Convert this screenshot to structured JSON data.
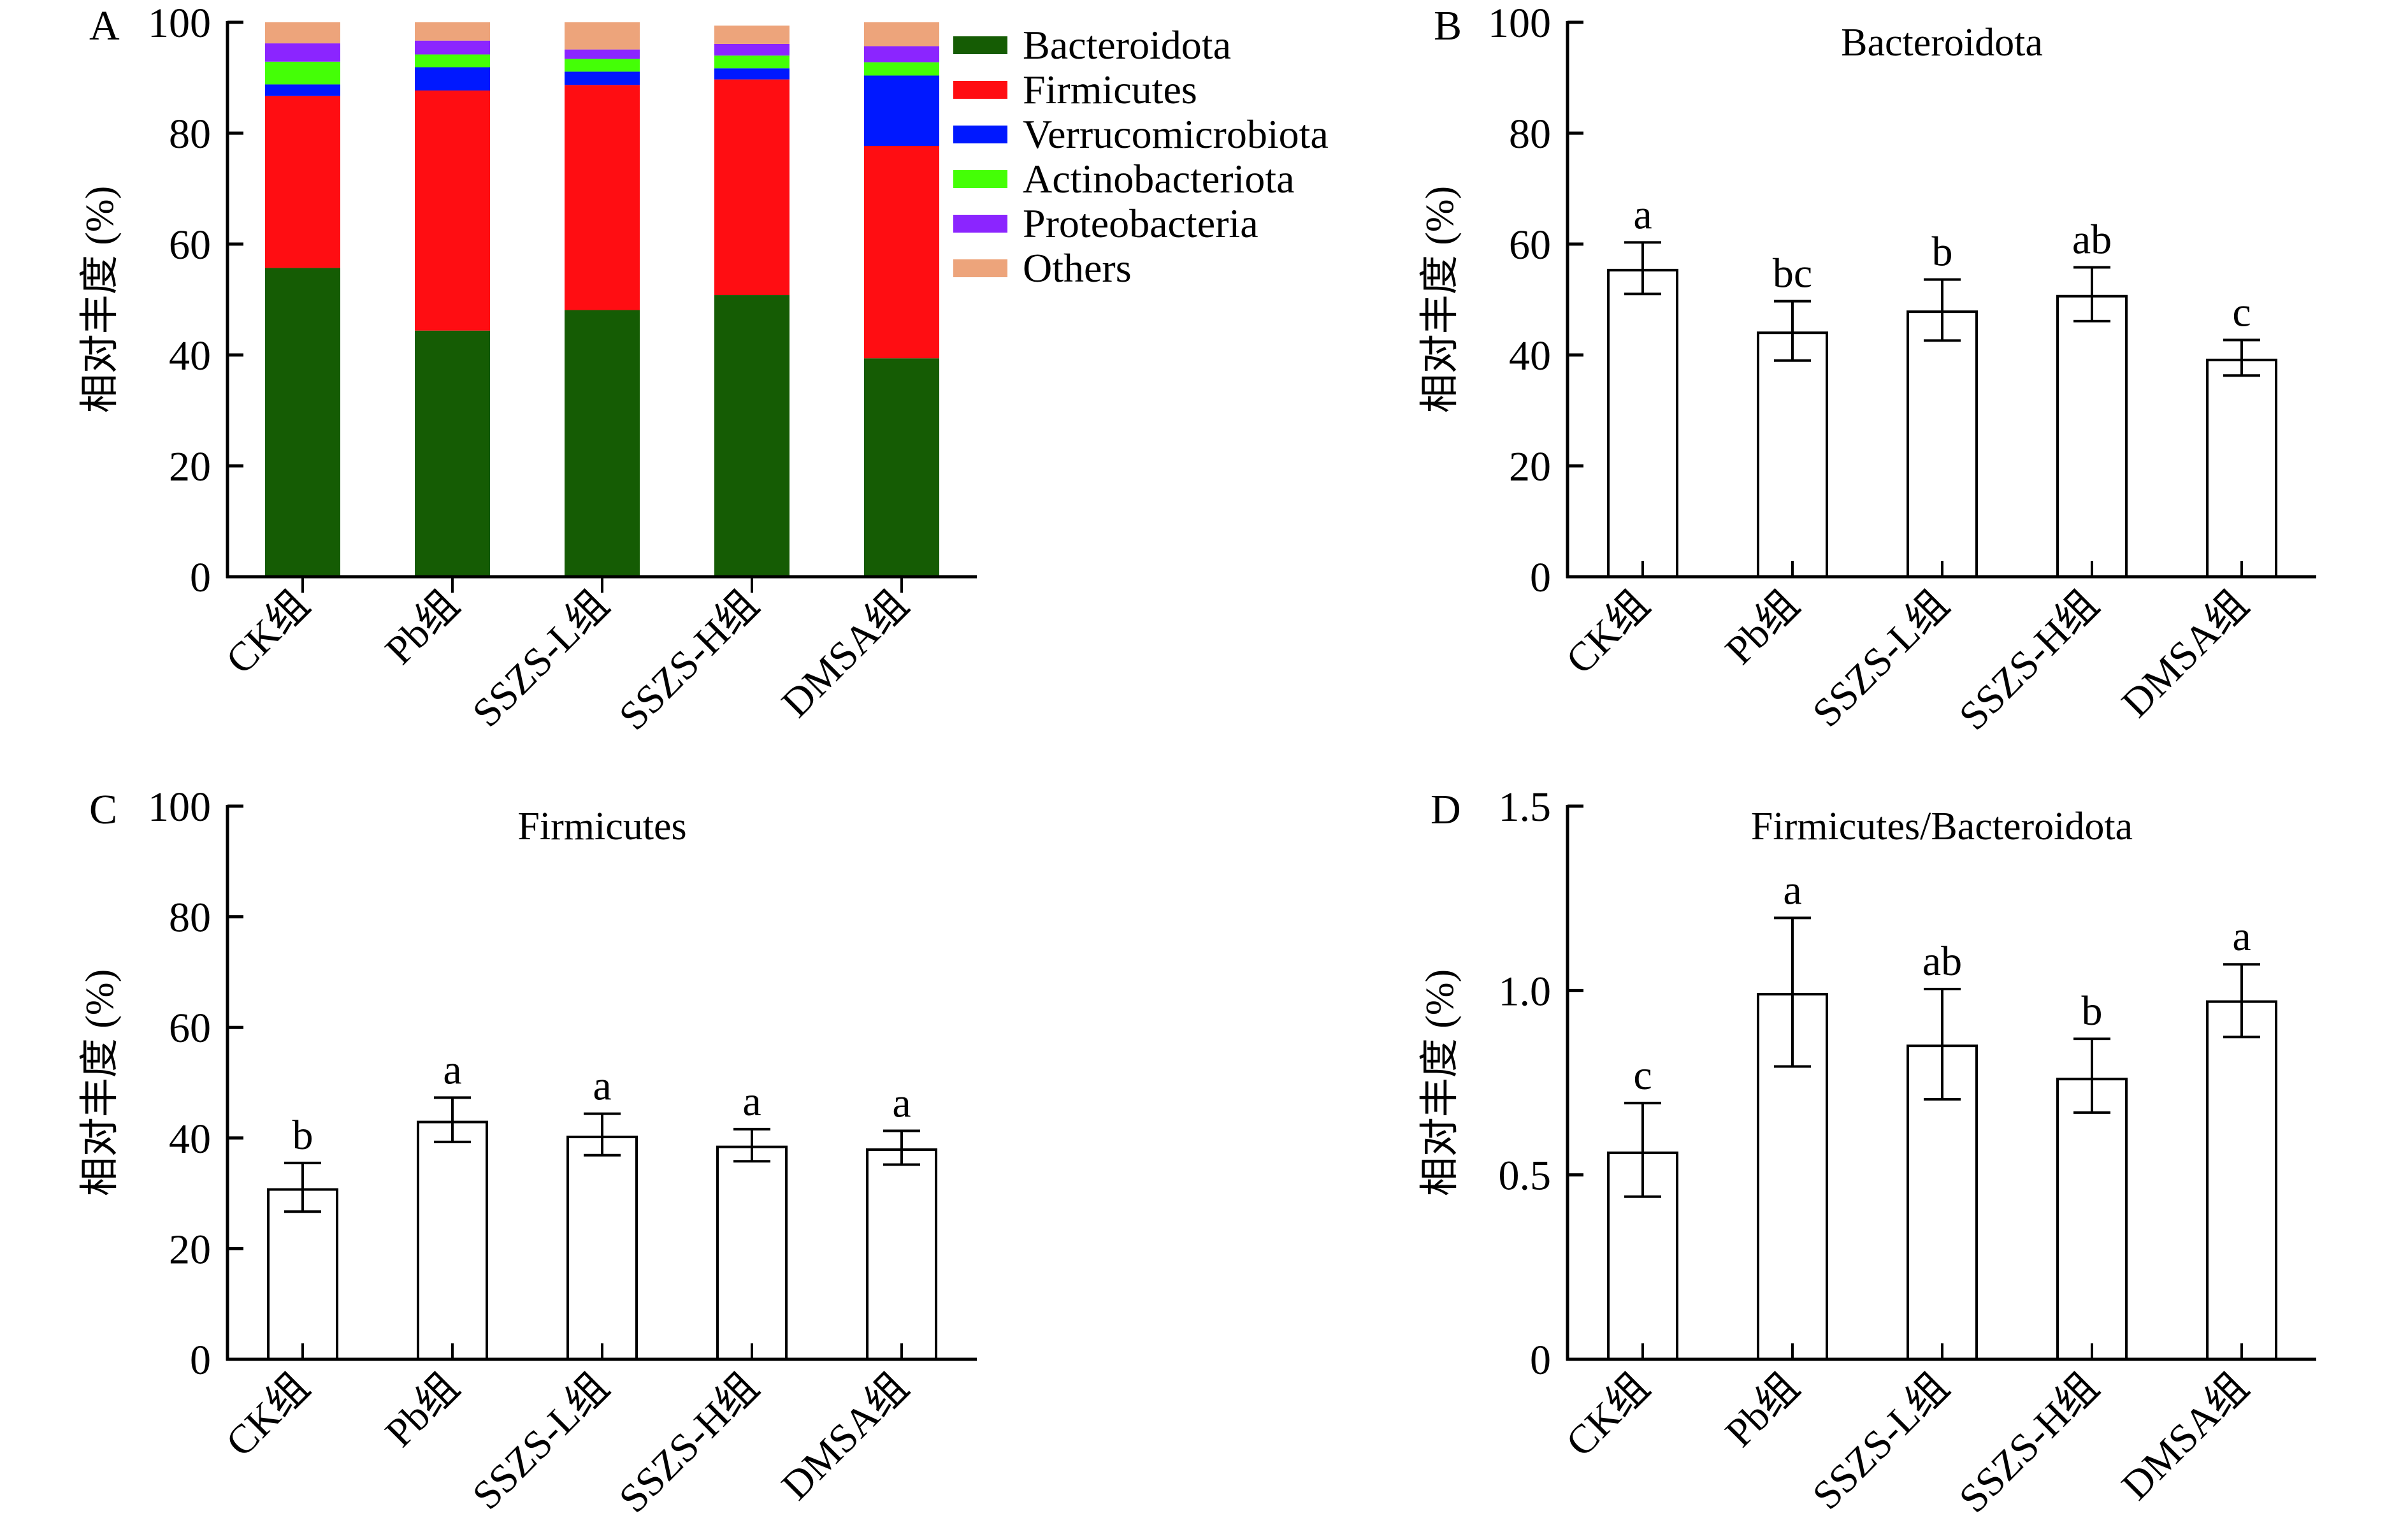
{
  "figure": {
    "panel_letters": [
      "A",
      "B",
      "C",
      "D"
    ]
  },
  "chart_data": [
    {
      "id": "A",
      "type": "bar",
      "stacked": true,
      "title": "",
      "xlabel": "",
      "ylabel": "相对丰度 (%)",
      "ylim": [
        0,
        100
      ],
      "yticks": [
        0,
        20,
        40,
        60,
        80,
        100
      ],
      "ytick_labels": [
        "0",
        "20",
        "40",
        "60",
        "80",
        "100"
      ],
      "categories": [
        "CK组",
        "Pb组",
        "SSZS-L组",
        "SSZS-H组",
        "DMSA组"
      ],
      "legend_position": "right",
      "grid": false,
      "series": [
        {
          "name": "Bacteroidota",
          "color": "#155c04",
          "values": [
            55.7,
            44.4,
            48.1,
            50.8,
            39.4
          ]
        },
        {
          "name": "Firmicutes",
          "color": "#ff0d12",
          "values": [
            31.0,
            43.3,
            40.6,
            38.9,
            38.3
          ]
        },
        {
          "name": "Verrucomicrobiota",
          "color": "#0018ff",
          "values": [
            2.1,
            4.2,
            2.4,
            2.0,
            12.7
          ]
        },
        {
          "name": "Actinobacteriota",
          "color": "#44ff06",
          "values": [
            4.1,
            2.3,
            2.3,
            2.3,
            2.4
          ]
        },
        {
          "name": "Proteobacteria",
          "color": "#8b25ff",
          "values": [
            3.3,
            2.5,
            1.7,
            2.1,
            2.9
          ]
        },
        {
          "name": "Others",
          "color": "#eda47b",
          "values": [
            3.8,
            3.3,
            4.9,
            3.3,
            4.3
          ]
        }
      ]
    },
    {
      "id": "B",
      "type": "bar",
      "title": "Bacteroidota",
      "xlabel": "",
      "ylabel": "相对丰度 (%)",
      "ylim": [
        0,
        100
      ],
      "yticks": [
        0,
        20,
        40,
        60,
        80,
        100
      ],
      "ytick_labels": [
        "0",
        "20",
        "40",
        "60",
        "80",
        "100"
      ],
      "categories": [
        "CK组",
        "Pb组",
        "SSZS-L组",
        "SSZS-H组",
        "DMSA组"
      ],
      "values": [
        55.3,
        44.0,
        47.8,
        50.6,
        39.1
      ],
      "error_upper": [
        60.3,
        49.7,
        53.6,
        55.8,
        42.7
      ],
      "error_lower": [
        51.0,
        39.0,
        42.6,
        46.1,
        36.3
      ],
      "significance": [
        "a",
        "bc",
        "b",
        "ab",
        "c"
      ],
      "grid": false
    },
    {
      "id": "C",
      "type": "bar",
      "title": "Firmicutes",
      "xlabel": "",
      "ylabel": "相对丰度 (%)",
      "ylim": [
        0,
        100
      ],
      "yticks": [
        0,
        20,
        40,
        60,
        80,
        100
      ],
      "ytick_labels": [
        "0",
        "20",
        "40",
        "60",
        "80",
        "100"
      ],
      "categories": [
        "CK组",
        "Pb组",
        "SSZS-L组",
        "SSZS-H组",
        "DMSA组"
      ],
      "values": [
        30.7,
        42.9,
        40.2,
        38.4,
        37.9
      ],
      "error_upper": [
        35.5,
        47.3,
        44.4,
        41.6,
        41.3
      ],
      "error_lower": [
        26.7,
        39.3,
        36.9,
        35.8,
        35.2
      ],
      "significance": [
        "b",
        "a",
        "a",
        "a",
        "a"
      ],
      "grid": false
    },
    {
      "id": "D",
      "type": "bar",
      "title": "Firmicutes/Bacteroidota",
      "xlabel": "",
      "ylabel": "相对丰度 (%)",
      "ylim": [
        0,
        1.5
      ],
      "yticks": [
        0,
        0.5,
        1.0,
        1.5
      ],
      "ytick_labels": [
        "0",
        "0.5",
        "1.0",
        "1.5"
      ],
      "categories": [
        "CK组",
        "Pb组",
        "SSZS-L组",
        "SSZS-H组",
        "DMSA组"
      ],
      "values": [
        0.56,
        0.99,
        0.85,
        0.76,
        0.97
      ],
      "error_upper": [
        0.695,
        1.197,
        1.004,
        0.869,
        1.071
      ],
      "error_lower": [
        0.441,
        0.794,
        0.705,
        0.669,
        0.874
      ],
      "significance": [
        "c",
        "a",
        "ab",
        "b",
        "a"
      ],
      "grid": false
    }
  ]
}
